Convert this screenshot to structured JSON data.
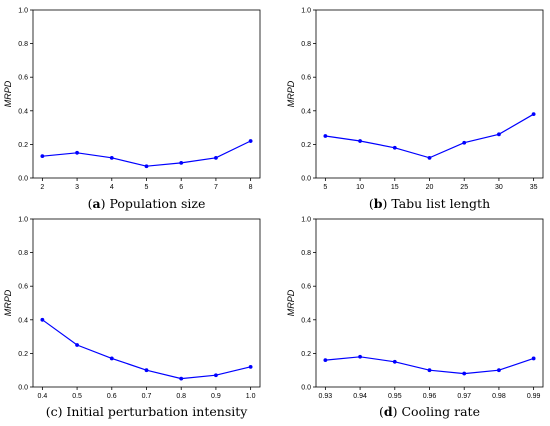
{
  "colors": {
    "line": "#0000ff",
    "axis": "#000000",
    "background": "#ffffff"
  },
  "chart_data": [
    {
      "type": "line",
      "caption_letter": "a",
      "caption_text": "Population size",
      "caption_open": "(",
      "caption_close": ")",
      "ylabel": "MRPD",
      "ylim": [
        0,
        1.0
      ],
      "yticks": [
        "0.0",
        "0.2",
        "0.4",
        "0.6",
        "0.8",
        "1.0"
      ],
      "yticks_values": [
        0,
        0.2,
        0.4,
        0.6,
        0.8,
        1.0
      ],
      "xticks": [
        "2",
        "3",
        "4",
        "5",
        "6",
        "7",
        "8"
      ],
      "x": [
        2,
        3,
        4,
        5,
        6,
        7,
        8
      ],
      "y": [
        0.13,
        0.15,
        0.12,
        0.07,
        0.09,
        0.12,
        0.22
      ]
    },
    {
      "type": "line",
      "caption_letter": "b",
      "caption_text": "Tabu list length",
      "caption_open": "(",
      "caption_close": ")",
      "ylabel": "MRPD",
      "ylim": [
        0,
        1.0
      ],
      "yticks": [
        "0.0",
        "0.2",
        "0.4",
        "0.6",
        "0.8",
        "1.0"
      ],
      "yticks_values": [
        0,
        0.2,
        0.4,
        0.6,
        0.8,
        1.0
      ],
      "xticks": [
        "5",
        "10",
        "15",
        "20",
        "25",
        "30",
        "35"
      ],
      "x": [
        5,
        10,
        15,
        20,
        25,
        30,
        35
      ],
      "y": [
        0.25,
        0.22,
        0.18,
        0.12,
        0.21,
        0.26,
        0.38
      ]
    },
    {
      "type": "line",
      "caption_letter": "",
      "caption_text": "(c) Initial perturbation intensity",
      "caption_open": "",
      "caption_close": "",
      "ylabel": "MRPD",
      "ylim": [
        0,
        1.0
      ],
      "yticks": [
        "0.0",
        "0.2",
        "0.4",
        "0.6",
        "0.8",
        "1.0"
      ],
      "yticks_values": [
        0,
        0.2,
        0.4,
        0.6,
        0.8,
        1.0
      ],
      "xticks": [
        "0.4",
        "0.5",
        "0.6",
        "0.7",
        "0.8",
        "0.9",
        "1.0"
      ],
      "x": [
        0.4,
        0.5,
        0.6,
        0.7,
        0.8,
        0.9,
        1.0
      ],
      "y": [
        0.4,
        0.25,
        0.17,
        0.1,
        0.05,
        0.07,
        0.12
      ]
    },
    {
      "type": "line",
      "caption_letter": "d",
      "caption_text": "Cooling rate",
      "caption_open": "(",
      "caption_close": ")",
      "ylabel": "MRPD",
      "ylim": [
        0,
        1.0
      ],
      "yticks": [
        "0.0",
        "0.2",
        "0.4",
        "0.6",
        "0.8",
        "1.0"
      ],
      "yticks_values": [
        0,
        0.2,
        0.4,
        0.6,
        0.8,
        1.0
      ],
      "xticks": [
        "0.93",
        "0.94",
        "0.95",
        "0.96",
        "0.97",
        "0.98",
        "0.99"
      ],
      "x": [
        0.93,
        0.94,
        0.95,
        0.96,
        0.97,
        0.98,
        0.99
      ],
      "y": [
        0.16,
        0.18,
        0.15,
        0.1,
        0.08,
        0.1,
        0.17
      ]
    }
  ]
}
